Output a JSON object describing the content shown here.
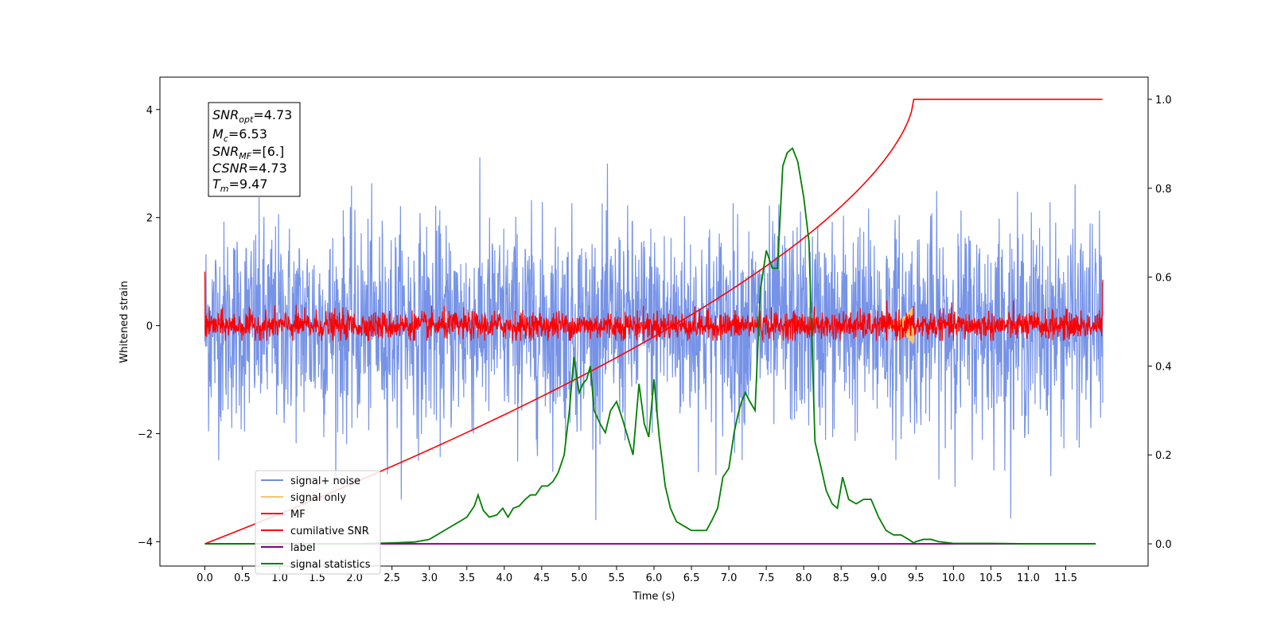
{
  "chart_data": {
    "type": "line",
    "xlabel": "Time (s)",
    "ylabel": "Whitened strain",
    "xlim": [
      -0.6,
      12.6
    ],
    "ylim": [
      -4.45,
      4.6
    ],
    "y2lim": [
      -0.05,
      1.05
    ],
    "x_ticks": [
      "0.0",
      "0.5",
      "1.0",
      "1.5",
      "2.0",
      "2.5",
      "3.0",
      "3.5",
      "4.0",
      "4.5",
      "5.0",
      "5.5",
      "6.0",
      "6.5",
      "7.0",
      "7.5",
      "8.0",
      "8.5",
      "9.0",
      "9.5",
      "10.0",
      "10.5",
      "11.0",
      "11.5"
    ],
    "y_ticks": [
      "−4",
      "−2",
      "0",
      "2",
      "4"
    ],
    "y2_ticks": [
      "0.0",
      "0.2",
      "0.4",
      "0.6",
      "0.8",
      "1.0"
    ],
    "series_colors": {
      "signal_noise": "#6f8de6",
      "signal_only": "#f6c46d",
      "mf": "#ff0000",
      "cumulative": "#ff0000",
      "label": "#800080",
      "stats": "#008000"
    },
    "series_names": {
      "signal_noise": "signal+ noise",
      "signal_only": "signal only",
      "mf": "MF",
      "cumulative": "cumilative SNR",
      "label": "label",
      "stats": "signal statistics"
    },
    "legend_placement": "lower-left",
    "annotation": {
      "snr_opt": "4.73",
      "mc": "6.53",
      "snr_mf": "[6.]",
      "csnr": "4.73",
      "tm": "9.47"
    },
    "signal_statistics": {
      "x": [
        0.0,
        0.5,
        1.0,
        1.5,
        2.0,
        2.5,
        2.8,
        3.0,
        3.2,
        3.4,
        3.5,
        3.6,
        3.65,
        3.72,
        3.8,
        3.9,
        3.98,
        4.05,
        4.12,
        4.2,
        4.28,
        4.35,
        4.42,
        4.5,
        4.58,
        4.65,
        4.72,
        4.8,
        4.87,
        4.93,
        5.0,
        5.05,
        5.1,
        5.15,
        5.2,
        5.28,
        5.35,
        5.42,
        5.5,
        5.58,
        5.65,
        5.72,
        5.8,
        5.87,
        5.93,
        6.0,
        6.07,
        6.15,
        6.22,
        6.3,
        6.4,
        6.5,
        6.6,
        6.7,
        6.78,
        6.85,
        6.92,
        7.0,
        7.07,
        7.12,
        7.17,
        7.22,
        7.28,
        7.35,
        7.42,
        7.5,
        7.58,
        7.65,
        7.72,
        7.78,
        7.85,
        7.92,
        8.0,
        8.07,
        8.15,
        8.22,
        8.3,
        8.38,
        8.45,
        8.52,
        8.6,
        8.7,
        8.8,
        8.9,
        9.0,
        9.1,
        9.2,
        9.3,
        9.4,
        9.47,
        9.5,
        9.6,
        9.7,
        9.8,
        10.0,
        10.5,
        11.0,
        11.5,
        11.9
      ],
      "y": [
        0.0,
        0.0,
        0.001,
        0.0,
        0.0,
        0.002,
        0.004,
        0.01,
        0.03,
        0.05,
        0.06,
        0.085,
        0.11,
        0.075,
        0.06,
        0.065,
        0.08,
        0.06,
        0.08,
        0.085,
        0.1,
        0.11,
        0.11,
        0.13,
        0.13,
        0.14,
        0.16,
        0.2,
        0.3,
        0.42,
        0.34,
        0.36,
        0.37,
        0.4,
        0.3,
        0.27,
        0.25,
        0.3,
        0.32,
        0.28,
        0.24,
        0.2,
        0.36,
        0.27,
        0.24,
        0.37,
        0.24,
        0.13,
        0.08,
        0.05,
        0.04,
        0.03,
        0.03,
        0.03,
        0.055,
        0.08,
        0.15,
        0.17,
        0.25,
        0.29,
        0.32,
        0.34,
        0.32,
        0.3,
        0.57,
        0.66,
        0.62,
        0.62,
        0.85,
        0.88,
        0.89,
        0.86,
        0.78,
        0.68,
        0.23,
        0.18,
        0.12,
        0.09,
        0.08,
        0.15,
        0.1,
        0.09,
        0.1,
        0.1,
        0.06,
        0.03,
        0.02,
        0.02,
        0.01,
        0.002,
        0.005,
        0.01,
        0.01,
        0.005,
        0.001,
        0.001,
        0.0,
        0.0,
        0.0
      ]
    }
  }
}
